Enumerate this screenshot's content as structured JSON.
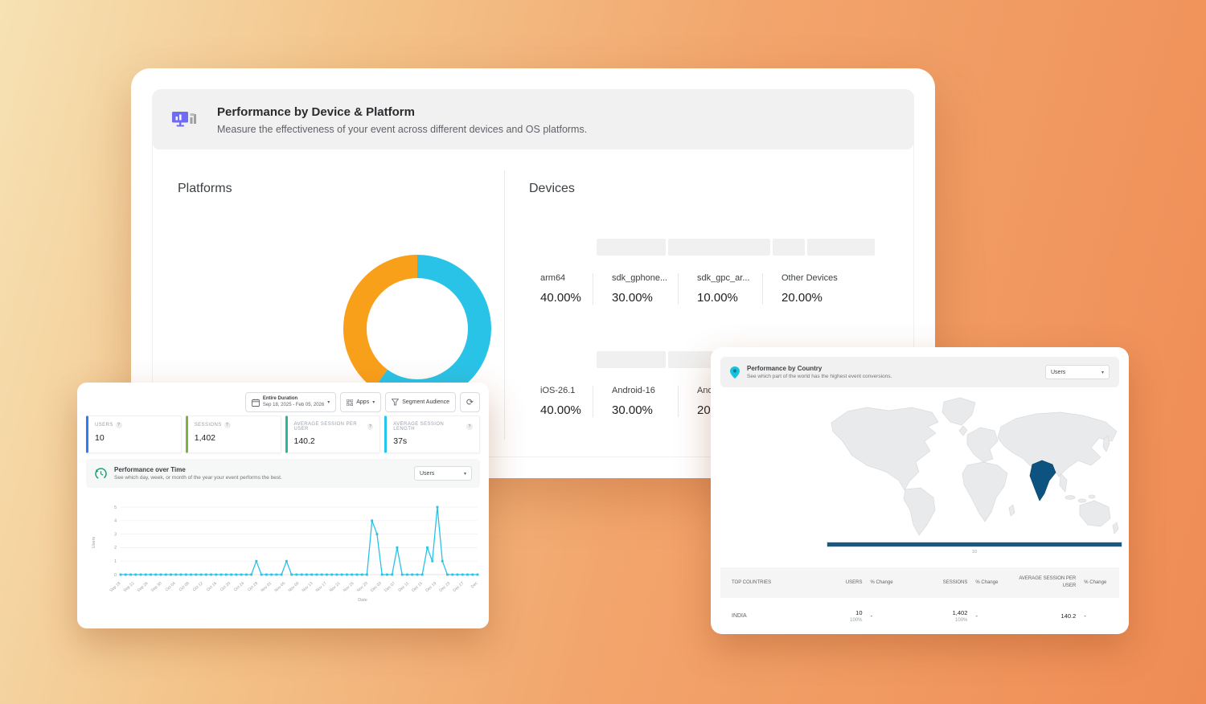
{
  "device_platform_card": {
    "title": "Performance by Device & Platform",
    "subtitle": "Measure the effectiveness of your event across different devices and OS platforms.",
    "platforms_section": {
      "title": "Platforms"
    },
    "devices_section": {
      "title": "Devices",
      "skeleton_segments": [
        25,
        37,
        11.5,
        24.5
      ],
      "rows": [
        {
          "stats": [
            {
              "label": "arm64",
              "value": "40.00%"
            },
            {
              "label": "sdk_gphone...",
              "value": "30.00%"
            },
            {
              "label": "sdk_gpc_ar...",
              "value": "10.00%"
            },
            {
              "label": "Other Devices",
              "value": "20.00%"
            }
          ]
        },
        {
          "stats": [
            {
              "label": "iOS-26.1",
              "value": "40.00%"
            },
            {
              "label": "Android-16",
              "value": "30.00%"
            },
            {
              "label": "Andr",
              "value": "20."
            }
          ]
        }
      ]
    }
  },
  "timeline_card": {
    "toolbar": {
      "date_range_label": "Entire Duration",
      "date_range_value": "Sep 18, 2025 - Feb 05, 2026",
      "apps_label": "Apps",
      "segment_label": "Segment Audience"
    },
    "metrics": [
      {
        "label": "USERS",
        "value": "10",
        "accent": "#2f7df6"
      },
      {
        "label": "SESSIONS",
        "value": "1,402",
        "accent": "#7cb342"
      },
      {
        "label": "AVERAGE SESSION PER USER",
        "value": "140.2",
        "accent": "#2fb59d"
      },
      {
        "label": "AVERAGE SESSION LENGTH",
        "value": "37s",
        "accent": "#29c5e8"
      }
    ],
    "performance_over_time": {
      "title": "Performance over Time",
      "subtitle": "See which day, week, or month of the year your event performs the best.",
      "dropdown_value": "Users"
    }
  },
  "country_card": {
    "title": "Performance by Country",
    "subtitle": "See which part of the world has the highest event conversions.",
    "dropdown_value": "Users",
    "legend_value": "10",
    "map_highlight_color": "#0d537f",
    "table": {
      "columns": [
        "TOP COUNTRIES",
        "USERS",
        "% Change",
        "SESSIONS",
        "% Change",
        "AVERAGE SESSION PER USER",
        "% Change"
      ],
      "rows": [
        {
          "country": "INDIA",
          "users": "10",
          "users_sub": "100%",
          "users_change": "-",
          "sessions": "1,402",
          "sessions_sub": "100%",
          "sessions_change": "-",
          "avg_session_per_user": "140.2",
          "avg_change": "-"
        }
      ]
    }
  },
  "chart_data": [
    {
      "type": "pie",
      "title": "Platforms",
      "donut": true,
      "labels": [
        "platform-cyan",
        "platform-orange"
      ],
      "values": [
        60,
        40
      ],
      "colors": [
        "#29c3e8",
        "#f9a01b"
      ]
    },
    {
      "type": "line",
      "title": "Performance over Time",
      "xlabel": "Date",
      "ylabel": "Users",
      "ylim": [
        0,
        5
      ],
      "yticks": [
        0,
        1,
        2,
        3,
        4,
        5
      ],
      "color": "#29c3e8",
      "xticks": [
        "Sep 18",
        "Sep 22",
        "Sep 26",
        "Sep 30",
        "Oct 04",
        "Oct 08",
        "Oct 12",
        "Oct 16",
        "Oct 20",
        "Oct 24",
        "Oct 28",
        "Nov 01",
        "Nov 05",
        "Nov 09",
        "Nov 13",
        "Nov 17",
        "Nov 21",
        "Nov 25",
        "Nov 29",
        "Dec 03",
        "Dec 07",
        "Dec 11",
        "Dec 15",
        "Dec 19",
        "Dec 23",
        "Dec 27",
        "Dec"
      ],
      "values": [
        0,
        0,
        0,
        0,
        0,
        0,
        0,
        0,
        0,
        0,
        0,
        0,
        0,
        0,
        0,
        0,
        0,
        0,
        0,
        0,
        0,
        0,
        0,
        0,
        0,
        0,
        0,
        1,
        0,
        0,
        0,
        0,
        0,
        1,
        0,
        0,
        0,
        0,
        0,
        0,
        0,
        0,
        0,
        0,
        0,
        0,
        0,
        0,
        0,
        0,
        4,
        3,
        0,
        0,
        0,
        2,
        0,
        0,
        0,
        0,
        0,
        2,
        1,
        5,
        1,
        0,
        0,
        0,
        0,
        0,
        0,
        0
      ]
    }
  ]
}
